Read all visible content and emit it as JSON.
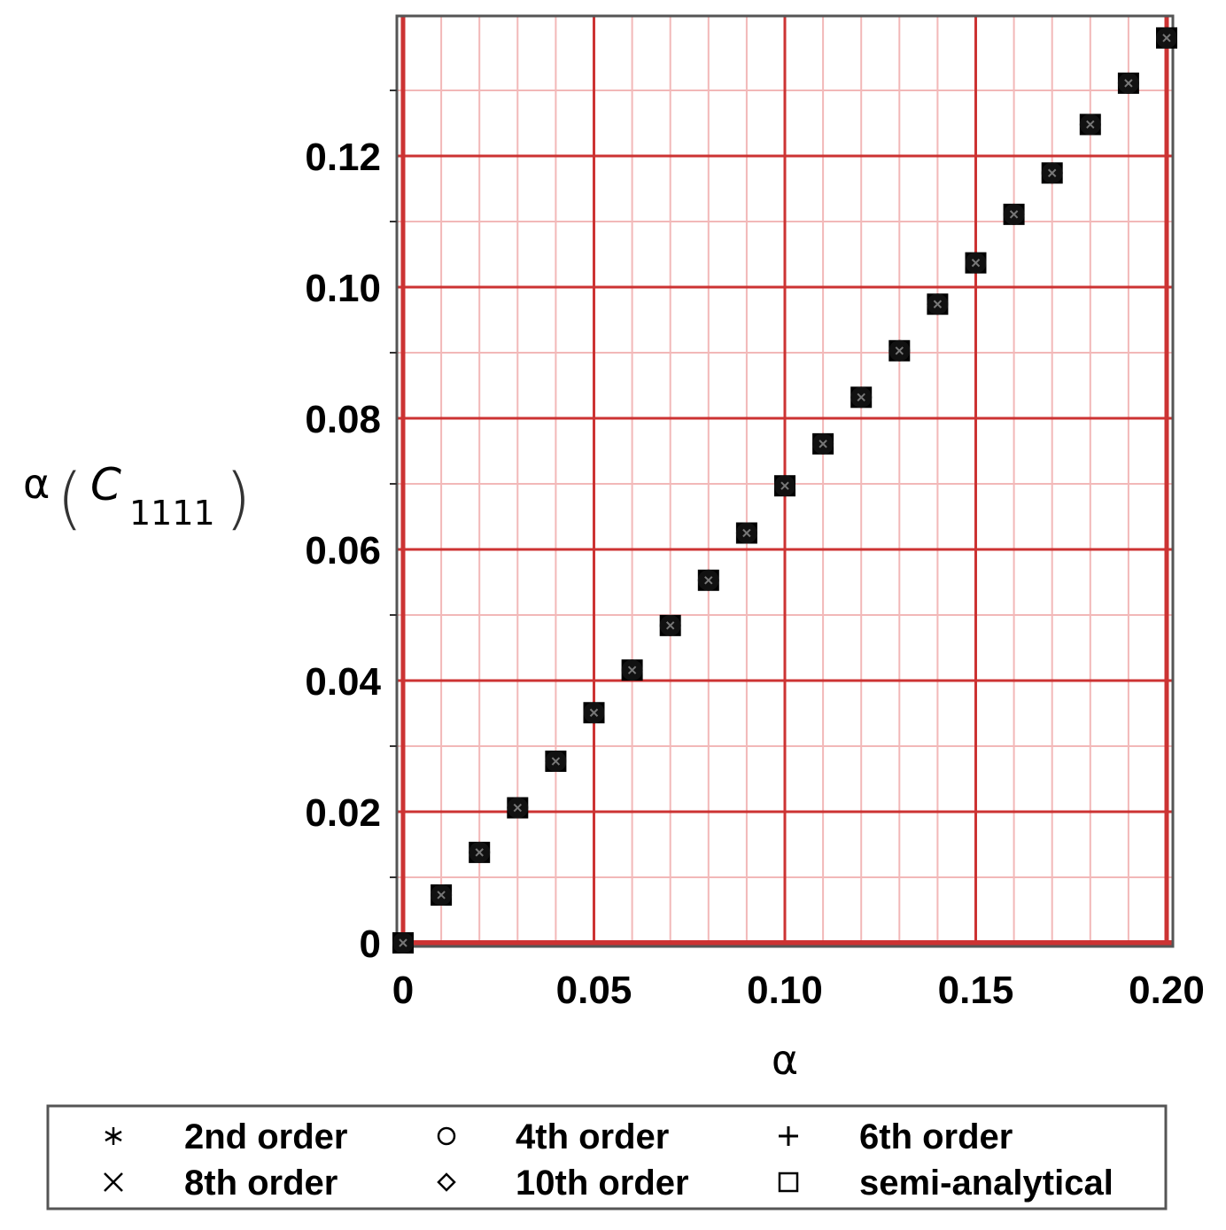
{
  "chart_data": {
    "type": "scatter",
    "xlabel": "α",
    "ylabel_prefix": "α",
    "ylabel_symbol": "C",
    "ylabel_subscript": "1111",
    "xlim": [
      0,
      0.2
    ],
    "ylim": [
      0,
      0.14
    ],
    "x_ticks": [
      {
        "value": 0,
        "label": "0"
      },
      {
        "value": 0.05,
        "label": "0.05"
      },
      {
        "value": 0.1,
        "label": "0.10"
      },
      {
        "value": 0.15,
        "label": "0.15"
      },
      {
        "value": 0.2,
        "label": "0.20"
      }
    ],
    "y_ticks": [
      {
        "value": 0,
        "label": "0"
      },
      {
        "value": 0.02,
        "label": "0.02"
      },
      {
        "value": 0.04,
        "label": "0.04"
      },
      {
        "value": 0.06,
        "label": "0.06"
      },
      {
        "value": 0.08,
        "label": "0.08"
      },
      {
        "value": 0.1,
        "label": "0.10"
      },
      {
        "value": 0.12,
        "label": "0.12"
      }
    ],
    "grid": true,
    "grid_color": "#cc3333",
    "minor_grid_color": "#f2b8b8",
    "legend_position": "bottom",
    "x": [
      0,
      0.01,
      0.02,
      0.03,
      0.04,
      0.05,
      0.06,
      0.07,
      0.08,
      0.09,
      0.1,
      0.11,
      0.12,
      0.13,
      0.14,
      0.15,
      0.16,
      0.17,
      0.18,
      0.19,
      0.2
    ],
    "series": [
      {
        "name": "2nd order",
        "marker": "asterisk",
        "values": [
          0,
          0.0073,
          0.0138,
          0.0206,
          0.0277,
          0.0351,
          0.0416,
          0.0484,
          0.0553,
          0.0625,
          0.0697,
          0.0761,
          0.0832,
          0.0903,
          0.0974,
          0.1037,
          0.1111,
          0.1174,
          0.1248,
          0.1311,
          0.138
        ]
      },
      {
        "name": "4th order",
        "marker": "circle",
        "values": [
          0,
          0.0073,
          0.0138,
          0.0206,
          0.0277,
          0.0351,
          0.0416,
          0.0484,
          0.0553,
          0.0625,
          0.0697,
          0.0761,
          0.0832,
          0.0903,
          0.0974,
          0.1037,
          0.1111,
          0.1174,
          0.1248,
          0.1311,
          0.138
        ]
      },
      {
        "name": "6th order",
        "marker": "plus",
        "values": [
          0,
          0.0073,
          0.0138,
          0.0206,
          0.0277,
          0.0351,
          0.0416,
          0.0484,
          0.0553,
          0.0625,
          0.0697,
          0.0761,
          0.0832,
          0.0903,
          0.0974,
          0.1037,
          0.1111,
          0.1174,
          0.1248,
          0.1311,
          0.138
        ]
      },
      {
        "name": "8th order",
        "marker": "cross",
        "values": [
          0,
          0.0073,
          0.0138,
          0.0206,
          0.0277,
          0.0351,
          0.0416,
          0.0484,
          0.0553,
          0.0625,
          0.0697,
          0.0761,
          0.0832,
          0.0903,
          0.0974,
          0.1037,
          0.1111,
          0.1174,
          0.1248,
          0.1311,
          0.138
        ]
      },
      {
        "name": "10th order",
        "marker": "diamond",
        "values": [
          0,
          0.0073,
          0.0138,
          0.0206,
          0.0277,
          0.0351,
          0.0416,
          0.0484,
          0.0553,
          0.0625,
          0.0697,
          0.0761,
          0.0832,
          0.0903,
          0.0974,
          0.1037,
          0.1111,
          0.1174,
          0.1248,
          0.1311,
          0.138
        ]
      },
      {
        "name": "semi-analytical",
        "marker": "square",
        "values": [
          0,
          0.0073,
          0.0138,
          0.0206,
          0.0277,
          0.0351,
          0.0416,
          0.0484,
          0.0553,
          0.0625,
          0.0697,
          0.0761,
          0.0832,
          0.0903,
          0.0974,
          0.1037,
          0.1111,
          0.1174,
          0.1248,
          0.1311,
          0.138
        ]
      }
    ]
  }
}
